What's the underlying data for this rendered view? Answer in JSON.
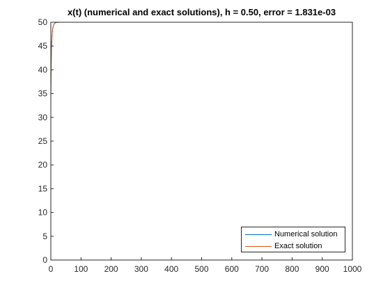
{
  "chart_data": {
    "type": "line",
    "title": "x(t) (numerical and exact solutions), h = 0.50, error = 1.831e-03",
    "xlabel": "",
    "ylabel": "",
    "xlim": [
      0,
      1000
    ],
    "ylim": [
      0,
      50
    ],
    "xticks": [
      0,
      100,
      200,
      300,
      400,
      500,
      600,
      700,
      800,
      900,
      1000
    ],
    "yticks": [
      0,
      5,
      10,
      15,
      20,
      25,
      30,
      35,
      40,
      45,
      50
    ],
    "grid": false,
    "legend_placement": "bottom-right",
    "series": [
      {
        "name": "Numerical solution",
        "color": "#0072BD",
        "x": [
          0,
          0.5,
          1,
          1.5,
          2,
          3,
          4,
          5,
          6,
          8,
          10,
          12,
          15,
          20,
          25,
          30,
          40,
          60,
          100,
          200,
          400,
          600,
          800,
          1000
        ],
        "y": [
          34,
          37.5,
          40.2,
          42.2,
          43.8,
          45.9,
          47.2,
          48.0,
          48.6,
          49.2,
          49.55,
          49.75,
          49.88,
          49.96,
          49.99,
          50,
          50,
          50,
          50,
          50,
          50,
          50,
          50,
          50
        ]
      },
      {
        "name": "Exact solution",
        "color": "#D95319",
        "x": [
          0,
          0.5,
          1,
          1.5,
          2,
          3,
          4,
          5,
          6,
          8,
          10,
          12,
          15,
          20,
          25,
          30,
          40,
          60,
          100,
          200,
          400,
          600,
          800,
          1000
        ],
        "y": [
          34,
          37.5,
          40.2,
          42.2,
          43.8,
          45.9,
          47.2,
          48.0,
          48.6,
          49.2,
          49.55,
          49.75,
          49.88,
          49.96,
          49.99,
          50,
          50,
          50,
          50,
          50,
          50,
          50,
          50,
          50
        ]
      }
    ]
  }
}
